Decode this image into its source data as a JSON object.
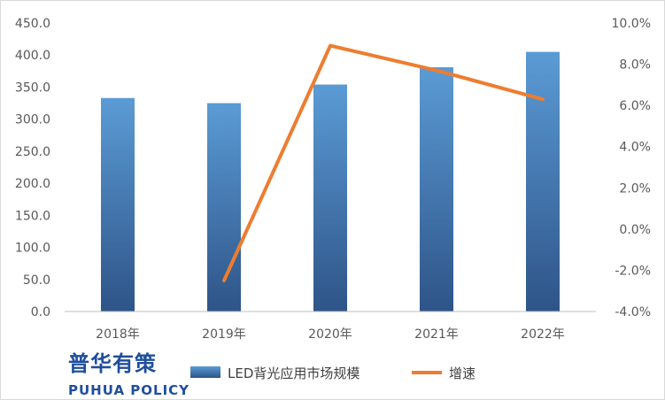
{
  "branding": {
    "logo_cn": "普华有策",
    "logo_en": "PUHUA POLICY"
  },
  "chart_data": {
    "type": "bar",
    "categories": [
      "2018年",
      "2019年",
      "2020年",
      "2021年",
      "2022年"
    ],
    "series": [
      {
        "name": "LED背光应用市场规模",
        "type": "bar",
        "axis": "left",
        "values": [
          333.0,
          325.0,
          354.0,
          381.0,
          405.0
        ]
      },
      {
        "name": "增速",
        "type": "line",
        "axis": "right",
        "values": [
          null,
          -2.5,
          8.9,
          7.7,
          6.3
        ]
      }
    ],
    "y_left": {
      "min": 0,
      "max": 450,
      "step": 50,
      "tick_labels": [
        "0.0",
        "50.0",
        "100.0",
        "150.0",
        "200.0",
        "250.0",
        "300.0",
        "350.0",
        "400.0",
        "450.0"
      ]
    },
    "y_right": {
      "min": -4,
      "max": 10,
      "step": 2,
      "tick_labels": [
        "-4.0%",
        "-2.0%",
        "0.0%",
        "2.0%",
        "4.0%",
        "6.0%",
        "8.0%",
        "10.0%"
      ]
    },
    "legend_position": "bottom",
    "grid": false,
    "colors": {
      "bar_top": "#5b9bd5",
      "bar_bottom": "#2e5488",
      "line": "#ed7d31",
      "axis": "#bfbfbf",
      "text": "#595959"
    }
  }
}
